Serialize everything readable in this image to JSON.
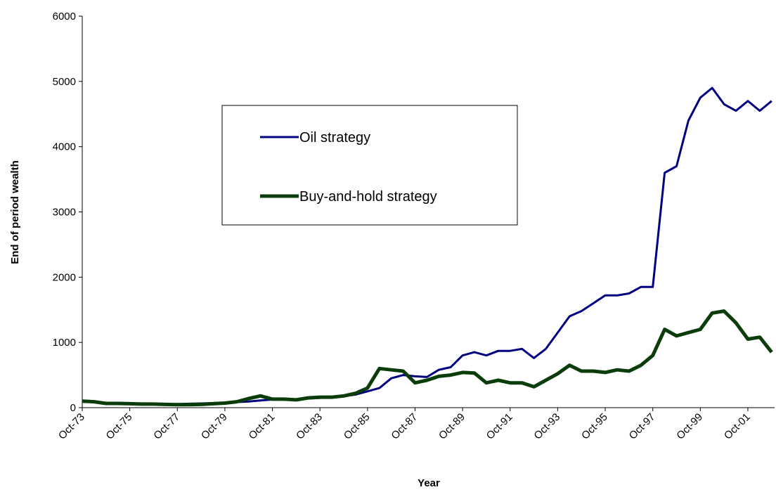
{
  "chart_data": {
    "type": "line",
    "x_label": "Year",
    "y_label": "End of period wealth",
    "categories": [
      "Oct-73",
      null,
      null,
      null,
      "Oct-75",
      null,
      null,
      null,
      "Oct-77",
      null,
      null,
      null,
      "Oct-79",
      null,
      null,
      null,
      "Oct-81",
      null,
      null,
      null,
      "Oct-83",
      null,
      null,
      null,
      "Oct-85",
      null,
      null,
      null,
      "Oct-87",
      null,
      null,
      null,
      "Oct-89",
      null,
      null,
      null,
      "Oct-91",
      null,
      null,
      null,
      "Oct-93",
      null,
      null,
      null,
      "Oct-95",
      null,
      null,
      null,
      "Oct-97",
      null,
      null,
      null,
      "Oct-99",
      null,
      null,
      null,
      "Oct-01",
      null,
      null
    ],
    "series": [
      {
        "name": "Oil strategy",
        "color": "#000080",
        "width": 3,
        "values": [
          100,
          90,
          70,
          65,
          60,
          58,
          55,
          52,
          55,
          60,
          65,
          70,
          75,
          85,
          95,
          110,
          125,
          125,
          130,
          140,
          150,
          160,
          175,
          200,
          250,
          300,
          450,
          500,
          480,
          470,
          580,
          620,
          800,
          850,
          800,
          870,
          870,
          900,
          760,
          900,
          1150,
          1400,
          1480,
          1600,
          1720,
          1720,
          1750,
          1850,
          1850,
          3600,
          3700,
          4400,
          4750,
          4900,
          4650,
          4550,
          4700,
          4550,
          4700
        ]
      },
      {
        "name": "Buy-and-hold strategy",
        "color": "#0b3d0b",
        "width": 5,
        "values": [
          100,
          90,
          65,
          65,
          60,
          55,
          55,
          50,
          45,
          45,
          50,
          60,
          70,
          90,
          140,
          180,
          130,
          130,
          120,
          150,
          160,
          160,
          180,
          220,
          300,
          600,
          580,
          560,
          380,
          420,
          480,
          500,
          540,
          530,
          380,
          420,
          380,
          380,
          320,
          420,
          520,
          650,
          560,
          560,
          540,
          580,
          560,
          650,
          800,
          1200,
          1100,
          1150,
          1200,
          1450,
          1480,
          1300,
          1050,
          1080,
          850
        ]
      }
    ],
    "ylim": [
      0,
      6000
    ],
    "yticks": [
      0,
      1000,
      2000,
      3000,
      4000,
      5000,
      6000
    ],
    "grid": false
  }
}
